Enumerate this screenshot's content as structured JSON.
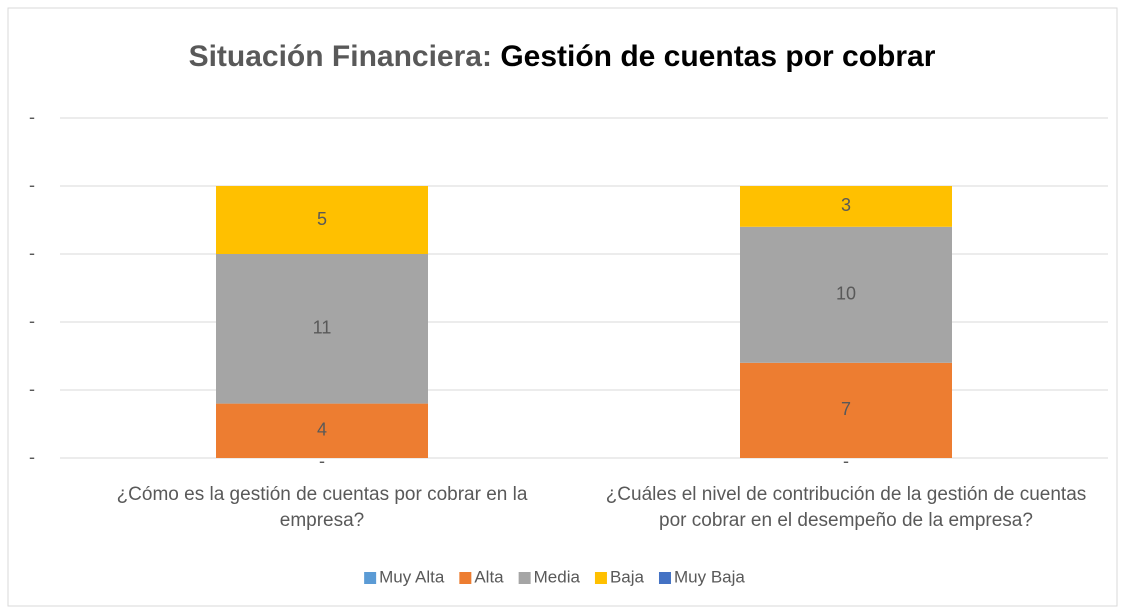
{
  "chart_data": {
    "type": "stacked_bar",
    "title": {
      "lead": "Situación Financiera:",
      "main": "Gestión de cuentas por cobrar"
    },
    "categories": [
      "¿Cómo es la gestión de cuentas por cobrar en la empresa?",
      "¿Cuáles el nivel de contribución de la gestión de cuentas por cobrar en el desempeño de la empresa?"
    ],
    "series": [
      {
        "name": "Muy Alta",
        "color": "#5b9bd5",
        "values": [
          0,
          0
        ],
        "value_labels": [
          "-",
          "-"
        ]
      },
      {
        "name": "Alta",
        "color": "#ed7d31",
        "values": [
          4,
          7
        ]
      },
      {
        "name": "Media",
        "color": "#a5a5a5",
        "values": [
          11,
          10
        ]
      },
      {
        "name": "Baja",
        "color": "#ffc000",
        "values": [
          5,
          3
        ]
      },
      {
        "name": "Muy Baja",
        "color": "#4472c4",
        "values": [
          0,
          0
        ]
      }
    ],
    "ylim": [
      0,
      25
    ],
    "yticks": [
      {
        "value": 0,
        "label": "-"
      },
      {
        "value": 5,
        "label": "-"
      },
      {
        "value": 10,
        "label": "-"
      },
      {
        "value": 15,
        "label": "-"
      },
      {
        "value": 20,
        "label": "-"
      },
      {
        "value": 25,
        "label": "-"
      }
    ],
    "grid": true,
    "legend": "bottom"
  }
}
